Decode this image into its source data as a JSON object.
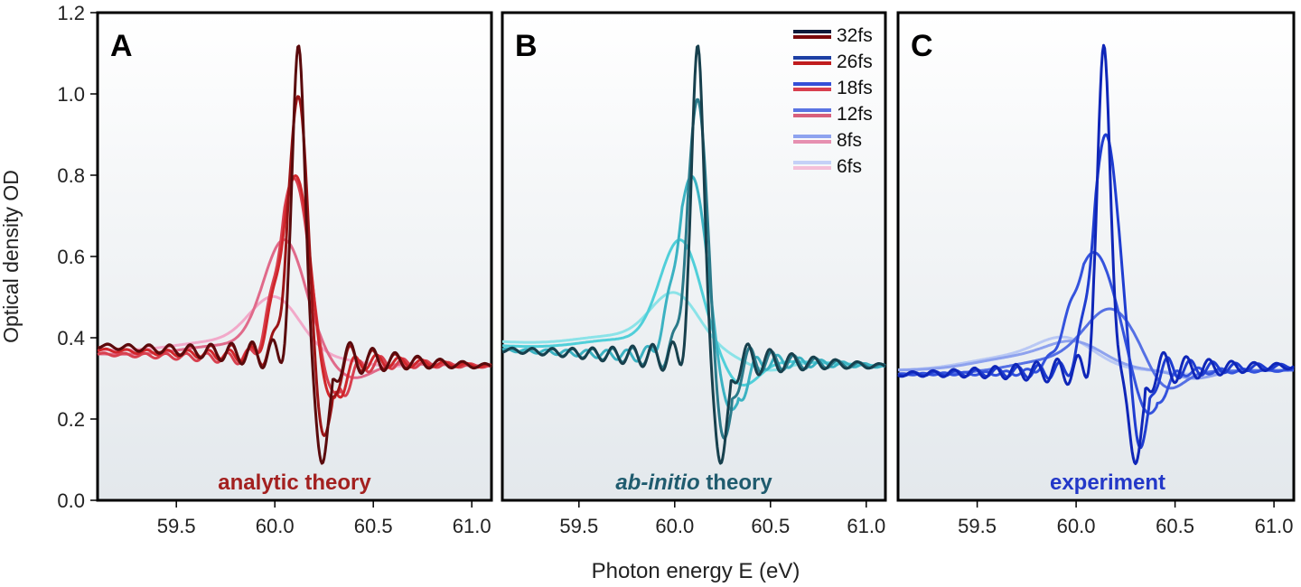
{
  "figure": {
    "xlabel": "Photon energy E (eV)",
    "ylabel": "Optical density OD",
    "y_tick_labels": [
      "0.0",
      "0.2",
      "0.4",
      "0.6",
      "0.8",
      "1.0",
      "1.2"
    ],
    "x_tick_labels": [
      "59.5",
      "60.0",
      "60.5",
      "61.0"
    ]
  },
  "chart_data": [
    {
      "type": "line",
      "panel": "A",
      "annotation": "analytic theory",
      "annotation_color": "#a3201f",
      "xlim": [
        59.1,
        61.1
      ],
      "ylim": [
        0.0,
        1.2
      ],
      "grid": false,
      "background": "gradient white to light gray-blue",
      "series": [
        {
          "name": "32fs",
          "color": "#5a0a0c",
          "fano_peak": 1.12,
          "peak_x": 60.12,
          "dip": 0.09,
          "dip_x": 60.24,
          "baseline_left": 0.38,
          "baseline_right": 0.33,
          "oscillations": true
        },
        {
          "name": "26fs",
          "color": "#9b1416",
          "fano_peak": 1.0,
          "peak_x": 60.12,
          "dip": 0.13,
          "dip_x": 60.24,
          "baseline_left": 0.38,
          "baseline_right": 0.33,
          "oscillations": true
        },
        {
          "name": "18fs",
          "color": "#d0262b",
          "fano_peak": 0.81,
          "peak_x": 60.11,
          "dip": 0.2,
          "dip_x": 60.26,
          "baseline_left": 0.37,
          "baseline_right": 0.33,
          "oscillations": true
        },
        {
          "name": "12fs",
          "color": "#d8404f",
          "fano_peak": 0.8,
          "peak_x": 60.1,
          "dip": 0.24,
          "dip_x": 60.28,
          "baseline_left": 0.36,
          "baseline_right": 0.33,
          "oscillations": true
        },
        {
          "name": "8fs",
          "color": "#e06a8a",
          "fano_peak": 0.63,
          "peak_x": 60.05,
          "dip": 0.3,
          "dip_x": 60.4,
          "baseline_left": 0.36,
          "baseline_right": 0.33,
          "oscillations": false
        },
        {
          "name": "6fs",
          "color": "#f2a9c9",
          "fano_peak": 0.49,
          "peak_x": 60.0,
          "dip": 0.33,
          "dip_x": 60.6,
          "baseline_left": 0.37,
          "baseline_right": 0.33,
          "oscillations": false
        }
      ]
    },
    {
      "type": "line",
      "panel": "B",
      "annotation": "theory",
      "annotation_italic_prefix": "ab-initio",
      "annotation_color": "#1f5b6e",
      "xlim": [
        59.1,
        61.1
      ],
      "ylim": [
        0.0,
        1.2
      ],
      "grid": false,
      "background": "gradient white to light gray-blue",
      "series": [
        {
          "name": "32fs",
          "color": "#17404d",
          "fano_peak": 1.12,
          "peak_x": 60.12,
          "dip": 0.09,
          "dip_x": 60.24,
          "baseline_left": 0.37,
          "baseline_right": 0.33,
          "oscillations": true
        },
        {
          "name": "26fs",
          "color": "#2a7a8a",
          "fano_peak": 0.99,
          "peak_x": 60.12,
          "dip": 0.13,
          "dip_x": 60.25,
          "baseline_left": 0.37,
          "baseline_right": 0.33,
          "oscillations": true
        },
        {
          "name": "18fs",
          "color": "#3bb2c2",
          "fano_peak": 0.8,
          "peak_x": 60.09,
          "dip": 0.2,
          "dip_x": 60.28,
          "baseline_left": 0.37,
          "baseline_right": 0.33,
          "oscillations": true
        },
        {
          "name": "12fs",
          "color": "#50cfd9",
          "fano_peak": 0.63,
          "peak_x": 60.03,
          "dip": 0.28,
          "dip_x": 60.35,
          "baseline_left": 0.38,
          "baseline_right": 0.33,
          "oscillations": false
        },
        {
          "name": "8fs",
          "color": "#8be3e8",
          "fano_peak": 0.5,
          "peak_x": 60.0,
          "dip": 0.32,
          "dip_x": 60.5,
          "baseline_left": 0.39,
          "baseline_right": 0.33,
          "oscillations": false
        }
      ]
    },
    {
      "type": "line",
      "panel": "C",
      "annotation": "experiment",
      "annotation_color": "#2338c8",
      "xlim": [
        59.1,
        61.1
      ],
      "ylim": [
        0.0,
        1.2
      ],
      "grid": false,
      "background": "gradient white to light gray-blue",
      "legend": {
        "placement": "top-right of panel B",
        "entries": [
          "32fs",
          "26fs",
          "18fs",
          "12fs",
          "8fs",
          "6fs"
        ],
        "colors": [
          [
            "#0b1a3a",
            "#7a0a0c"
          ],
          [
            "#1d3fa4",
            "#c01c1e"
          ],
          [
            "#3550d8",
            "#d8404f"
          ],
          [
            "#5a74e3",
            "#d8607c"
          ],
          [
            "#8ea3ef",
            "#e68fb0"
          ],
          [
            "#c4d1f7",
            "#f4bfd8"
          ]
        ]
      },
      "series": [
        {
          "name": "32fs",
          "color": "#0f26b8",
          "fano_peak": 1.12,
          "peak_x": 60.14,
          "dip": 0.09,
          "dip_x": 60.3,
          "baseline_left": 0.31,
          "baseline_right": 0.33,
          "oscillations": true
        },
        {
          "name": "26fs",
          "color": "#1f3dd0",
          "fano_peak": 0.9,
          "peak_x": 60.15,
          "dip": 0.11,
          "dip_x": 60.32,
          "baseline_left": 0.31,
          "baseline_right": 0.33,
          "oscillations": true
        },
        {
          "name": "18fs",
          "color": "#3453dd",
          "fano_peak": 0.61,
          "peak_x": 60.09,
          "dip": 0.2,
          "dip_x": 60.36,
          "baseline_left": 0.31,
          "baseline_right": 0.32,
          "oscillations": true
        },
        {
          "name": "12fs",
          "color": "#5570e4",
          "fano_peak": 0.46,
          "peak_x": 60.18,
          "dip": 0.26,
          "dip_x": 60.45,
          "baseline_left": 0.31,
          "baseline_right": 0.32,
          "oscillations": false
        },
        {
          "name": "8fs",
          "color": "#8ea2ee",
          "fano_peak": 0.38,
          "peak_x": 60.0,
          "dip": 0.3,
          "dip_x": 60.6,
          "baseline_left": 0.32,
          "baseline_right": 0.32,
          "oscillations": false
        },
        {
          "name": "6fs",
          "color": "#b9c8f4",
          "fano_peak": 0.39,
          "peak_x": 59.95,
          "dip": 0.31,
          "dip_x": 60.6,
          "baseline_left": 0.32,
          "baseline_right": 0.32,
          "oscillations": false
        }
      ]
    }
  ]
}
